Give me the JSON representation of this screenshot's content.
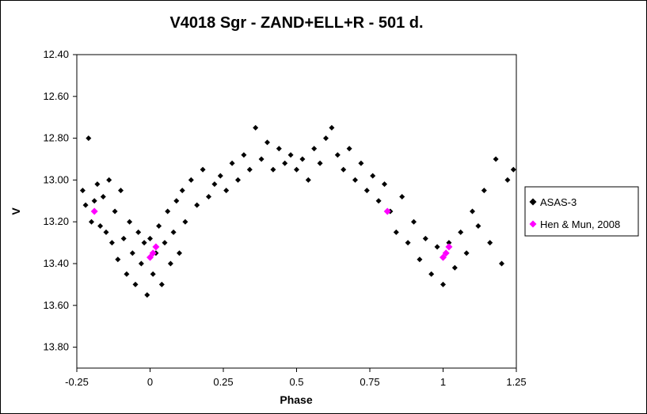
{
  "chart_data": {
    "type": "scatter",
    "title": "V4018 Sgr - ZAND+ELL+R - 501 d.",
    "xlabel": "Phase",
    "ylabel": "V",
    "xlim": [
      -0.25,
      1.25
    ],
    "ylim": [
      13.9,
      12.4
    ],
    "y_inverted": true,
    "x_ticks": [
      "-0.25",
      "0",
      "0.25",
      "0.5",
      "0.75",
      "1",
      "1.25"
    ],
    "y_ticks": [
      "12.40",
      "12.60",
      "12.80",
      "13.00",
      "13.20",
      "13.40",
      "13.60",
      "13.80"
    ],
    "grid": false,
    "legend_position": "right",
    "series": [
      {
        "name": "ASAS-3",
        "color": "#000000",
        "marker": "diamond",
        "points": [
          [
            -0.23,
            13.05
          ],
          [
            -0.22,
            13.12
          ],
          [
            -0.21,
            12.8
          ],
          [
            -0.2,
            13.2
          ],
          [
            -0.19,
            13.1
          ],
          [
            -0.18,
            13.02
          ],
          [
            -0.17,
            13.22
          ],
          [
            -0.16,
            13.08
          ],
          [
            -0.15,
            13.25
          ],
          [
            -0.14,
            13.0
          ],
          [
            -0.13,
            13.3
          ],
          [
            -0.12,
            13.15
          ],
          [
            -0.11,
            13.38
          ],
          [
            -0.1,
            13.05
          ],
          [
            -0.09,
            13.28
          ],
          [
            -0.08,
            13.45
          ],
          [
            -0.07,
            13.2
          ],
          [
            -0.06,
            13.35
          ],
          [
            -0.05,
            13.5
          ],
          [
            -0.04,
            13.25
          ],
          [
            -0.03,
            13.4
          ],
          [
            -0.02,
            13.3
          ],
          [
            -0.01,
            13.55
          ],
          [
            0.0,
            13.28
          ],
          [
            0.01,
            13.45
          ],
          [
            0.02,
            13.35
          ],
          [
            0.03,
            13.22
          ],
          [
            0.04,
            13.5
          ],
          [
            0.05,
            13.3
          ],
          [
            0.06,
            13.15
          ],
          [
            0.07,
            13.4
          ],
          [
            0.08,
            13.25
          ],
          [
            0.09,
            13.1
          ],
          [
            0.1,
            13.35
          ],
          [
            0.11,
            13.05
          ],
          [
            0.12,
            13.2
          ],
          [
            0.14,
            13.0
          ],
          [
            0.16,
            13.12
          ],
          [
            0.18,
            12.95
          ],
          [
            0.2,
            13.08
          ],
          [
            0.22,
            13.02
          ],
          [
            0.24,
            12.98
          ],
          [
            0.26,
            13.05
          ],
          [
            0.28,
            12.92
          ],
          [
            0.3,
            13.0
          ],
          [
            0.32,
            12.88
          ],
          [
            0.34,
            12.95
          ],
          [
            0.36,
            12.75
          ],
          [
            0.38,
            12.9
          ],
          [
            0.4,
            12.82
          ],
          [
            0.42,
            12.95
          ],
          [
            0.44,
            12.85
          ],
          [
            0.46,
            12.92
          ],
          [
            0.48,
            12.88
          ],
          [
            0.5,
            12.95
          ],
          [
            0.52,
            12.9
          ],
          [
            0.54,
            13.0
          ],
          [
            0.56,
            12.85
          ],
          [
            0.58,
            12.92
          ],
          [
            0.6,
            12.8
          ],
          [
            0.62,
            12.75
          ],
          [
            0.64,
            12.88
          ],
          [
            0.66,
            12.95
          ],
          [
            0.68,
            12.85
          ],
          [
            0.7,
            13.0
          ],
          [
            0.72,
            12.92
          ],
          [
            0.74,
            13.05
          ],
          [
            0.76,
            12.98
          ],
          [
            0.78,
            13.1
          ],
          [
            0.8,
            13.02
          ],
          [
            0.82,
            13.15
          ],
          [
            0.84,
            13.25
          ],
          [
            0.86,
            13.08
          ],
          [
            0.88,
            13.3
          ],
          [
            0.9,
            13.2
          ],
          [
            0.92,
            13.38
          ],
          [
            0.94,
            13.28
          ],
          [
            0.96,
            13.45
          ],
          [
            0.98,
            13.32
          ],
          [
            1.0,
            13.5
          ],
          [
            1.02,
            13.3
          ],
          [
            1.04,
            13.42
          ],
          [
            1.06,
            13.25
          ],
          [
            1.08,
            13.35
          ],
          [
            1.1,
            13.15
          ],
          [
            1.12,
            13.22
          ],
          [
            1.14,
            13.05
          ],
          [
            1.16,
            13.3
          ],
          [
            1.18,
            12.9
          ],
          [
            1.2,
            13.4
          ],
          [
            1.22,
            13.0
          ],
          [
            1.24,
            12.95
          ]
        ]
      },
      {
        "name": "Hen & Mun, 2008",
        "color": "#ff00ff",
        "marker": "diamond",
        "points": [
          [
            -0.19,
            13.15
          ],
          [
            0.0,
            13.37
          ],
          [
            0.01,
            13.35
          ],
          [
            0.02,
            13.32
          ],
          [
            0.81,
            13.15
          ],
          [
            1.0,
            13.37
          ],
          [
            1.01,
            13.35
          ],
          [
            1.02,
            13.32
          ]
        ]
      }
    ]
  }
}
